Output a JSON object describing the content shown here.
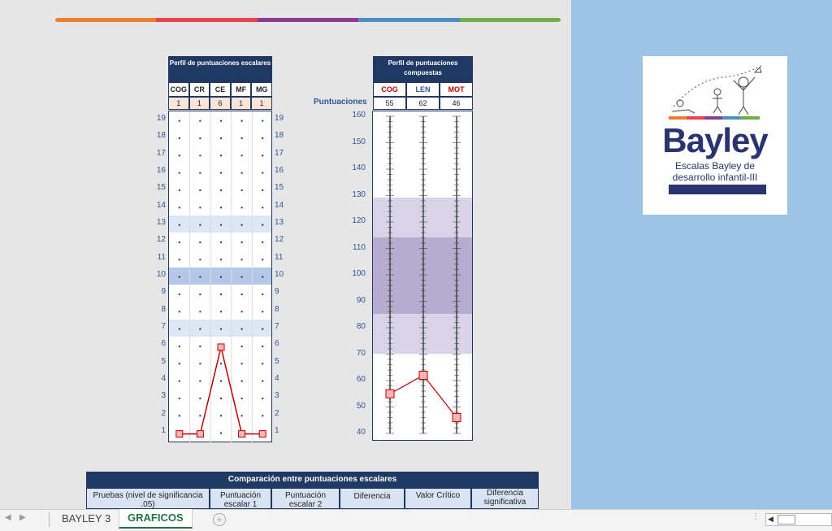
{
  "rainbow_colors": [
    "#ed7d31",
    "#e8434f",
    "#8e3a8f",
    "#4a90c8",
    "#70ad47"
  ],
  "scalar_profile": {
    "title": "Perfil de puntuaciones escalares",
    "columns": [
      "COG",
      "CR",
      "CE",
      "MF",
      "MG"
    ],
    "values": [
      "1",
      "1",
      "6",
      "1",
      "1"
    ],
    "y_labels": [
      "19",
      "18",
      "17",
      "16",
      "15",
      "14",
      "13",
      "12",
      "11",
      "10",
      "9",
      "8",
      "7",
      "6",
      "5",
      "4",
      "3",
      "2",
      "1"
    ]
  },
  "composite_profile": {
    "title": "Perfil de puntuaciones compuestas",
    "row_label": "Puntuaciones",
    "columns": [
      {
        "name": "COG",
        "color": "#c00000"
      },
      {
        "name": "LEN",
        "color": "#2f5597"
      },
      {
        "name": "MOT",
        "color": "#c00000"
      }
    ],
    "values": [
      "55",
      "62",
      "46"
    ],
    "y_labels": [
      "160",
      "150",
      "140",
      "130",
      "120",
      "110",
      "100",
      "90",
      "80",
      "70",
      "60",
      "50",
      "40"
    ]
  },
  "chart_data": [
    {
      "type": "line",
      "title": "Perfil de puntuaciones escalares",
      "categories": [
        "COG",
        "CR",
        "CE",
        "MF",
        "MG"
      ],
      "values": [
        1,
        1,
        6,
        1,
        1
      ],
      "ylim": [
        1,
        19
      ]
    },
    {
      "type": "line",
      "title": "Perfil de puntuaciones compuestas",
      "categories": [
        "COG",
        "LEN",
        "MOT"
      ],
      "values": [
        55,
        62,
        46
      ],
      "ylim": [
        40,
        160
      ]
    }
  ],
  "logo": {
    "name": "Bayley",
    "subtitle1": "Escalas Bayley de",
    "subtitle2": "desarrollo infantil-III"
  },
  "comparison_table": {
    "title": "Comparación entre puntuaciones escalares",
    "headers": [
      "Pruebas (nivel de significancia .05)",
      "Puntuación escalar 1",
      "Puntuación escalar 2",
      "Diferencia",
      "Valor Crítico",
      "Diferencia significativa"
    ]
  },
  "tabs": [
    "BAYLEY 3",
    "GRAFICOS"
  ]
}
